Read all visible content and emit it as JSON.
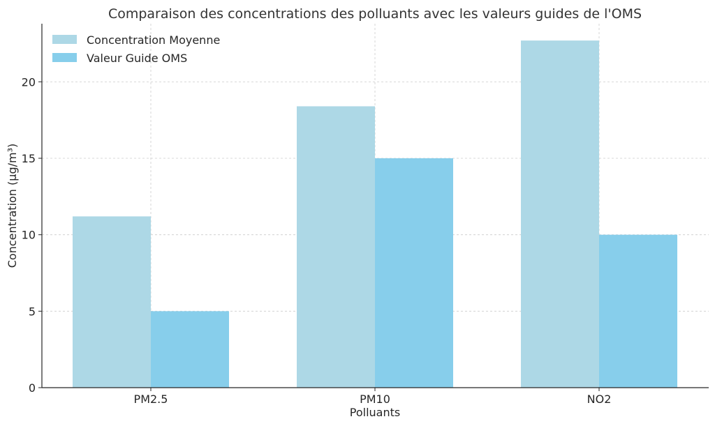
{
  "chart_data": {
    "type": "bar",
    "title": "Comparaison des concentrations des polluants avec les valeurs guides de l'OMS",
    "xlabel": "Polluants",
    "ylabel": "Concentration (µg/m³)",
    "categories": [
      "PM2.5",
      "PM10",
      "NO2"
    ],
    "series": [
      {
        "name": "Concentration Moyenne",
        "values": [
          11.2,
          18.4,
          22.7
        ],
        "color": "#add8e6"
      },
      {
        "name": "Valeur Guide OMS",
        "values": [
          5,
          15,
          10
        ],
        "color": "#87ceeb"
      }
    ],
    "ylim": [
      0,
      23.8
    ],
    "yticks": [
      0,
      5,
      10,
      15,
      20
    ],
    "grid": true,
    "legend_position": "top-left"
  }
}
